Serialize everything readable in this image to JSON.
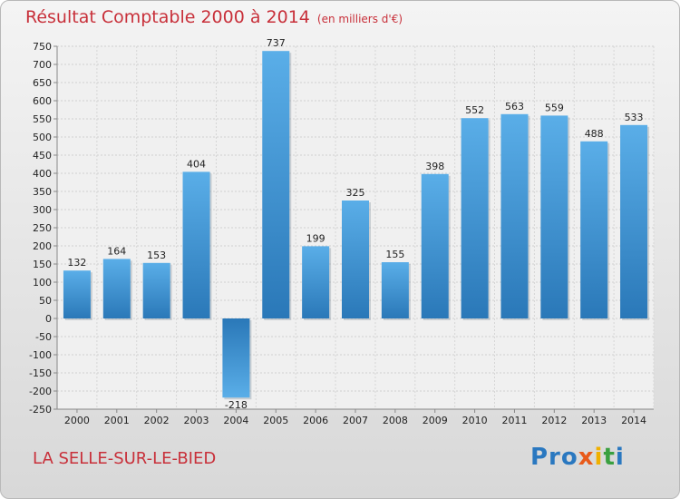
{
  "header": {
    "title": "Résultat Comptable 2000 à 2014",
    "unit": "(en milliers d'€)"
  },
  "footer": {
    "town": "LA SELLE-SUR-LE-BIED",
    "logo": [
      "Pro",
      "x",
      "i",
      "t",
      "i"
    ]
  },
  "colors": {
    "title": "#c8303a",
    "bar_top": "#5aaee8",
    "bar_bottom": "#2a78b8"
  },
  "chart_data": {
    "type": "bar",
    "title": "Résultat Comptable 2000 à 2014",
    "subtitle": "(en milliers d'€)",
    "xlabel": "",
    "ylabel": "",
    "categories": [
      "2000",
      "2001",
      "2002",
      "2003",
      "2004",
      "2005",
      "2006",
      "2007",
      "2008",
      "2009",
      "2010",
      "2011",
      "2012",
      "2013",
      "2014"
    ],
    "values": [
      132,
      164,
      153,
      404,
      -218,
      737,
      199,
      325,
      155,
      398,
      552,
      563,
      559,
      488,
      533
    ],
    "ylim": [
      -250,
      750
    ],
    "yticks": [
      750,
      700,
      650,
      600,
      550,
      500,
      450,
      400,
      350,
      300,
      250,
      200,
      150,
      100,
      50,
      0,
      -50,
      -100,
      -150,
      -200,
      -250
    ],
    "grid": true
  }
}
